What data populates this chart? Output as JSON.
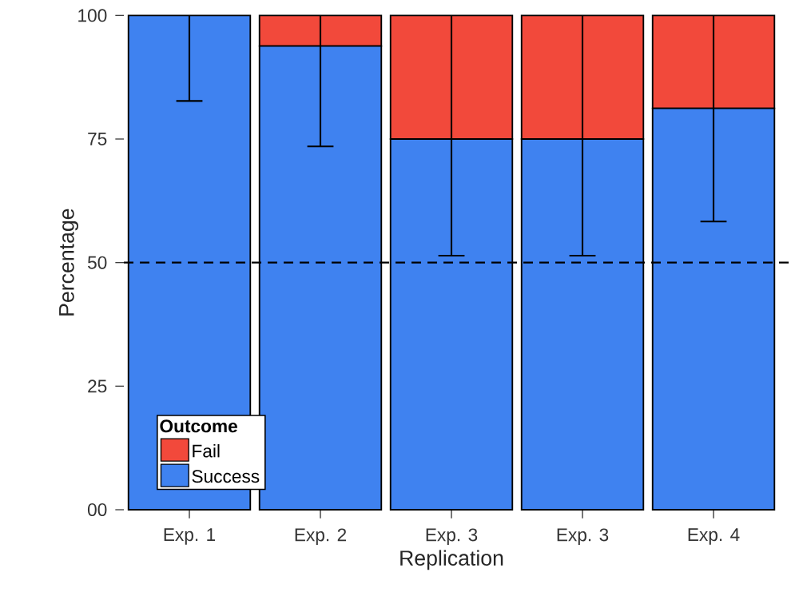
{
  "chart_data": {
    "type": "bar",
    "stacked": true,
    "xlabel": "Replication",
    "ylabel": "Percentage",
    "legend_title": "Outcome",
    "legend": "bottom left",
    "categories": [
      "Exp. 1",
      "Exp. 2",
      "Exp. 3",
      "Exp. 3",
      "Exp. 4"
    ],
    "series": [
      {
        "name": "Success",
        "color": "#3f82f0",
        "values": [
          100,
          93.8,
          75,
          75,
          81.2
        ],
        "errors": [
          [
            82.7,
            100
          ],
          [
            73.5,
            100
          ],
          [
            51.4,
            100
          ],
          [
            51.4,
            100
          ],
          [
            58.3,
            100
          ]
        ]
      },
      {
        "name": "Fail",
        "color": "#f2493b",
        "values": [
          0,
          6.2,
          25,
          25,
          18.8
        ]
      }
    ],
    "ylim": [
      0,
      100
    ],
    "yticks": [
      {
        "value": 0,
        "label": "00"
      },
      25,
      50,
      75,
      100
    ],
    "ref_lines": [
      {
        "axis": "y",
        "value": 50,
        "line_style": "dashed"
      }
    ],
    "grid": false
  }
}
